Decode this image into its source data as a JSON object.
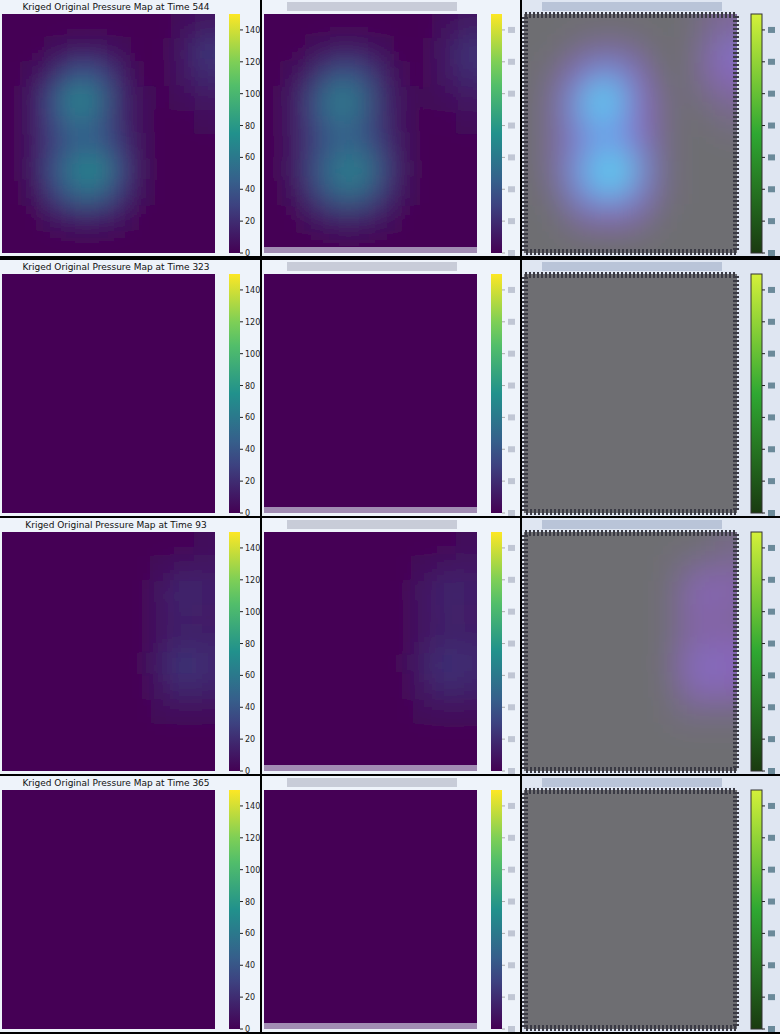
{
  "chart_data": [
    {
      "type": "heatmap",
      "title": "Kriged Original Pressure Map at Time 544",
      "cells": [
        [
          0,
          0,
          0,
          0,
          0,
          0,
          0,
          0,
          5,
          10
        ],
        [
          0,
          0,
          5,
          10,
          10,
          5,
          0,
          0,
          10,
          25
        ],
        [
          0,
          5,
          20,
          40,
          35,
          15,
          0,
          0,
          10,
          20
        ],
        [
          0,
          10,
          40,
          70,
          55,
          20,
          5,
          0,
          5,
          10
        ],
        [
          0,
          10,
          35,
          55,
          45,
          20,
          5,
          0,
          0,
          5
        ],
        [
          0,
          10,
          30,
          45,
          45,
          25,
          5,
          0,
          0,
          0
        ],
        [
          0,
          10,
          40,
          65,
          70,
          35,
          5,
          0,
          0,
          0
        ],
        [
          0,
          5,
          30,
          50,
          50,
          25,
          5,
          0,
          0,
          0
        ],
        [
          0,
          0,
          10,
          15,
          15,
          10,
          0,
          0,
          0,
          0
        ],
        [
          0,
          0,
          0,
          0,
          0,
          0,
          0,
          0,
          0,
          0
        ]
      ],
      "colorbar_range": [
        0,
        150
      ],
      "colorbar_ticks": [
        0,
        20,
        40,
        60,
        80,
        100,
        120,
        140
      ]
    },
    {
      "type": "heatmap",
      "title": "Kriged Original Pressure Map at Time 323",
      "cells": [
        [
          0,
          0,
          0,
          0,
          0,
          0,
          0,
          0,
          0,
          0
        ],
        [
          0,
          0,
          0,
          0,
          0,
          0,
          0,
          0,
          0,
          0
        ],
        [
          0,
          0,
          0,
          0,
          0,
          0,
          0,
          0,
          0,
          0
        ],
        [
          0,
          0,
          0,
          0,
          0,
          0,
          0,
          0,
          0,
          0
        ],
        [
          0,
          0,
          0,
          0,
          0,
          0,
          0,
          0,
          0,
          0
        ],
        [
          0,
          0,
          0,
          0,
          0,
          0,
          0,
          0,
          0,
          0
        ],
        [
          0,
          0,
          0,
          0,
          0,
          0,
          0,
          0,
          0,
          0
        ],
        [
          0,
          0,
          0,
          0,
          0,
          0,
          0,
          0,
          0,
          0
        ],
        [
          0,
          0,
          0,
          0,
          0,
          0,
          0,
          0,
          0,
          0
        ],
        [
          0,
          0,
          0,
          0,
          0,
          0,
          0,
          0,
          0,
          0
        ]
      ],
      "colorbar_range": [
        0,
        150
      ],
      "colorbar_ticks": [
        0,
        20,
        40,
        60,
        80,
        100,
        120,
        140
      ]
    },
    {
      "type": "heatmap",
      "title": "Kriged Original Pressure Map at Time 93",
      "cells": [
        [
          0,
          0,
          0,
          0,
          0,
          0,
          0,
          0,
          0,
          5
        ],
        [
          0,
          0,
          0,
          0,
          0,
          0,
          0,
          5,
          10,
          10
        ],
        [
          0,
          0,
          0,
          0,
          0,
          0,
          0,
          10,
          20,
          15
        ],
        [
          0,
          0,
          0,
          0,
          0,
          0,
          0,
          10,
          15,
          10
        ],
        [
          0,
          0,
          0,
          0,
          0,
          0,
          0,
          10,
          15,
          15
        ],
        [
          0,
          0,
          0,
          0,
          0,
          0,
          0,
          15,
          25,
          20
        ],
        [
          0,
          0,
          0,
          0,
          0,
          0,
          0,
          10,
          20,
          15
        ],
        [
          0,
          0,
          0,
          0,
          0,
          0,
          0,
          5,
          5,
          5
        ],
        [
          0,
          0,
          0,
          0,
          0,
          0,
          0,
          0,
          0,
          0
        ],
        [
          0,
          0,
          0,
          0,
          0,
          0,
          0,
          0,
          0,
          0
        ]
      ],
      "colorbar_range": [
        0,
        150
      ],
      "colorbar_ticks": [
        0,
        20,
        40,
        60,
        80,
        100,
        120,
        140
      ]
    },
    {
      "type": "heatmap",
      "title": "Kriged Original Pressure Map at Time 365",
      "cells": [
        [
          0,
          0,
          0,
          0,
          0,
          0,
          0,
          0,
          0,
          0
        ],
        [
          0,
          0,
          0,
          0,
          0,
          0,
          0,
          0,
          0,
          0
        ],
        [
          0,
          0,
          0,
          0,
          0,
          0,
          0,
          0,
          0,
          0
        ],
        [
          0,
          0,
          0,
          0,
          0,
          0,
          0,
          0,
          0,
          0
        ],
        [
          0,
          0,
          0,
          0,
          0,
          0,
          0,
          0,
          0,
          0
        ],
        [
          0,
          0,
          0,
          0,
          0,
          0,
          0,
          0,
          0,
          0
        ],
        [
          0,
          0,
          0,
          0,
          0,
          0,
          0,
          0,
          0,
          0
        ],
        [
          0,
          0,
          0,
          0,
          0,
          0,
          0,
          0,
          0,
          0
        ],
        [
          0,
          0,
          0,
          0,
          0,
          0,
          0,
          0,
          0,
          0
        ],
        [
          0,
          0,
          0,
          0,
          0,
          0,
          0,
          0,
          0,
          0
        ]
      ],
      "colorbar_range": [
        0,
        150
      ],
      "colorbar_ticks": [
        0,
        20,
        40,
        60,
        80,
        100,
        120,
        140
      ]
    }
  ]
}
